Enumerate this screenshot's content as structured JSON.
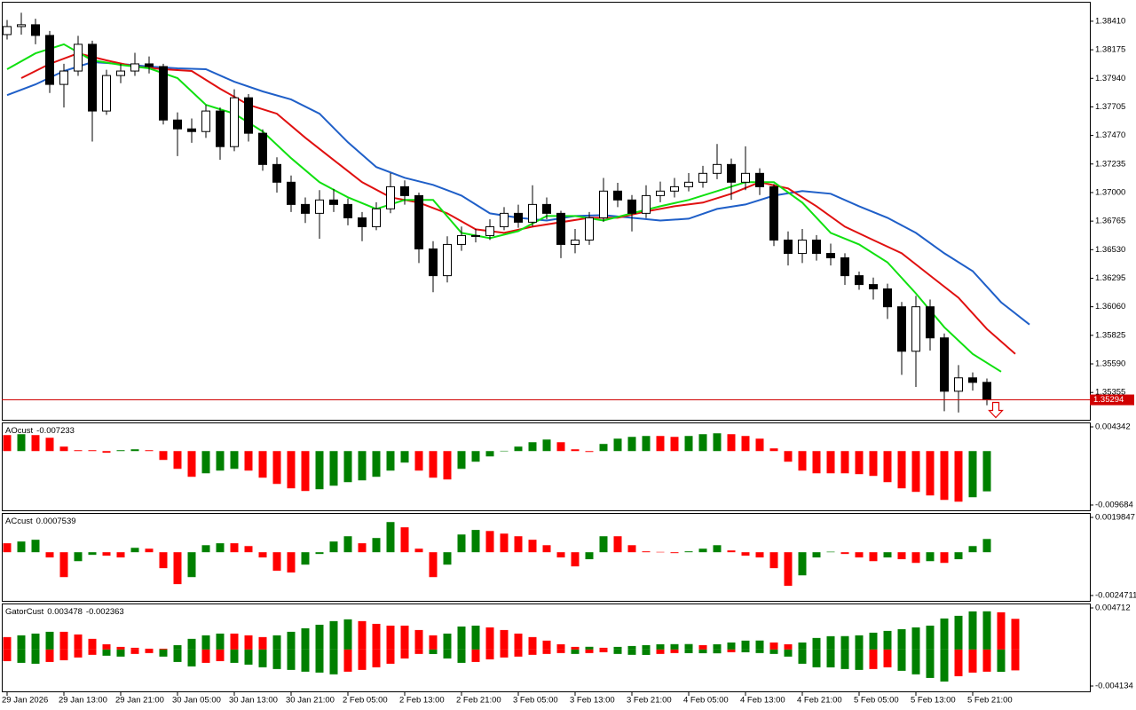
{
  "chart_data": [
    {
      "type": "candlestick",
      "xlim": [
        -0.375,
        76.25
      ],
      "ylim": [
        1.3513,
        1.3857
      ],
      "yticks": [
        {
          "value": 1.3841,
          "label": "1.38410"
        },
        1.38175,
        {
          "value": 1.3794,
          "label": "1.37940"
        },
        1.37705,
        {
          "value": 1.3747,
          "label": "1.37470"
        },
        1.37235,
        {
          "value": 1.37,
          "label": "1.37000"
        },
        1.36765,
        {
          "value": 1.3653,
          "label": "1.36530"
        },
        1.36295,
        {
          "value": 1.3606,
          "label": "1.36060"
        },
        1.35825,
        {
          "value": 1.3559,
          "label": "1.35590"
        },
        1.35355
      ],
      "xticks": [
        {
          "value": 0,
          "label": "29 Jan 2026"
        },
        {
          "value": 4,
          "label": "29 Jan 13:00"
        },
        {
          "value": 8,
          "label": "29 Jan 21:00"
        },
        {
          "value": 12,
          "label": "30 Jan 05:00"
        },
        {
          "value": 16,
          "label": "30 Jan 13:00"
        },
        {
          "value": 20,
          "label": "30 Jan 21:00"
        },
        {
          "value": 24,
          "label": "2 Feb 05:00"
        },
        {
          "value": 28,
          "label": "2 Feb 13:00"
        },
        {
          "value": 32,
          "label": "2 Feb 21:00"
        },
        {
          "value": 36,
          "label": "3 Feb 05:00"
        },
        {
          "value": 40,
          "label": "3 Feb 13:00"
        },
        {
          "value": 44,
          "label": "3 Feb 21:00"
        },
        {
          "value": 48,
          "label": "4 Feb 05:00"
        },
        {
          "value": 52,
          "label": "4 Feb 13:00"
        },
        {
          "value": 56,
          "label": "4 Feb 21:00"
        },
        {
          "value": 60,
          "label": "5 Feb 05:00"
        },
        {
          "value": 64,
          "label": "5 Feb 13:00"
        },
        {
          "value": 68,
          "label": "5 Feb 21:00"
        }
      ],
      "open": [
        1.383,
        1.38366,
        1.38381,
        1.38293,
        1.3789,
        1.38,
        1.3822,
        1.37671,
        1.37963,
        1.38,
        1.38059,
        1.38037,
        1.37597,
        1.37524,
        1.37502,
        1.37671,
        1.37378,
        1.3778,
        1.37488,
        1.37231,
        1.37085,
        1.36902,
        1.36829,
        1.36939,
        1.36902,
        1.36792,
        1.36719,
        1.36866,
        1.37048,
        1.36975,
        1.36536,
        1.36316,
        1.36573,
        1.36646,
        1.36646,
        1.36719,
        1.36829,
        1.36756,
        1.36902,
        1.36829,
        1.36573,
        1.36609,
        1.36792,
        1.37012,
        1.36939,
        1.36829,
        1.36975,
        1.37012,
        1.37048,
        1.37085,
        1.37158,
        1.37231,
        1.37085,
        1.37158,
        1.37048,
        1.36609,
        1.36499,
        1.36609,
        1.36499,
        1.36463,
        1.36316,
        1.36243,
        1.36207,
        1.3606,
        1.35694,
        1.3606,
        1.35804,
        1.35365,
        1.35475,
        1.35438,
        null,
        null,
        null
      ],
      "high": [
        1.3842,
        1.3848,
        1.3843,
        1.3833,
        1.3806,
        1.3829,
        1.3825,
        1.3801,
        1.3806,
        1.3815,
        1.3812,
        1.3806,
        1.3766,
        1.3761,
        1.3772,
        1.377,
        1.3785,
        1.3781,
        1.3752,
        1.3729,
        1.3714,
        1.3696,
        1.3702,
        1.3703,
        1.3695,
        1.3684,
        1.3692,
        1.3716,
        1.371,
        1.37,
        1.366,
        1.3664,
        1.3672,
        1.367,
        1.3678,
        1.3688,
        1.369,
        1.3706,
        1.3696,
        1.3685,
        1.367,
        1.3684,
        1.3712,
        1.3708,
        1.3698,
        1.3706,
        1.3709,
        1.3712,
        1.3716,
        1.3722,
        1.374,
        1.3728,
        1.3738,
        1.372,
        1.3707,
        1.3668,
        1.367,
        1.3665,
        1.3658,
        1.365,
        1.3635,
        1.363,
        1.3625,
        1.361,
        1.3615,
        1.3612,
        1.3584,
        1.3558,
        1.3552,
        1.3547,
        null,
        null,
        null
      ],
      "low": [
        1.3826,
        1.383,
        1.3822,
        1.3782,
        1.377,
        1.3796,
        1.3742,
        1.3764,
        1.379,
        1.3796,
        1.3798,
        1.3756,
        1.373,
        1.3741,
        1.3745,
        1.3727,
        1.3734,
        1.3742,
        1.3718,
        1.37,
        1.3684,
        1.3675,
        1.3662,
        1.3684,
        1.3673,
        1.366,
        1.3669,
        1.3683,
        1.369,
        1.3642,
        1.3618,
        1.3626,
        1.3652,
        1.3659,
        1.3661,
        1.3669,
        1.3671,
        1.3672,
        1.3678,
        1.3646,
        1.365,
        1.3657,
        1.3676,
        1.3688,
        1.3668,
        1.3679,
        1.3692,
        1.3696,
        1.3701,
        1.3704,
        1.3711,
        1.3694,
        1.3702,
        1.3698,
        1.3656,
        1.364,
        1.3642,
        1.3644,
        1.364,
        1.3624,
        1.362,
        1.3612,
        1.3596,
        1.355,
        1.354,
        1.357,
        1.352,
        1.3519,
        1.3537,
        1.3525,
        null,
        null,
        null
      ],
      "close": [
        1.38366,
        1.38381,
        1.38293,
        1.3789,
        1.38,
        1.3822,
        1.37671,
        1.37963,
        1.38,
        1.38059,
        1.38037,
        1.37597,
        1.37524,
        1.37502,
        1.37671,
        1.37378,
        1.3778,
        1.37488,
        1.37231,
        1.37085,
        1.36902,
        1.36829,
        1.36939,
        1.36902,
        1.36792,
        1.36719,
        1.36866,
        1.37048,
        1.36975,
        1.36536,
        1.36316,
        1.36573,
        1.36646,
        1.36646,
        1.36719,
        1.36829,
        1.36756,
        1.36902,
        1.36829,
        1.36573,
        1.36609,
        1.36792,
        1.37012,
        1.36939,
        1.36829,
        1.36975,
        1.37012,
        1.37048,
        1.37085,
        1.37158,
        1.37231,
        1.37085,
        1.37158,
        1.37048,
        1.36609,
        1.36499,
        1.36609,
        1.36499,
        1.36463,
        1.36316,
        1.36243,
        1.36207,
        1.3606,
        1.35694,
        1.3606,
        1.35804,
        1.35365,
        1.35475,
        1.35438,
        1.35294,
        null,
        null,
        null
      ],
      "up_color": "#ffffff",
      "down_color": "#000000",
      "price_line_color": "#d00000",
      "series": [
        {
          "color": "#1f5fc8",
          "x": [
            0,
            2,
            4,
            6,
            8,
            10,
            12,
            14,
            16,
            18,
            20,
            22,
            24,
            26,
            28,
            30,
            32,
            34,
            36,
            38,
            40,
            42,
            44,
            46,
            48,
            50,
            52,
            54,
            56,
            58,
            60,
            62,
            64,
            66,
            68,
            70,
            72
          ],
          "values": [
            1.37802,
            1.3789,
            1.38,
            1.38073,
            1.38059,
            1.38037,
            1.38022,
            1.38015,
            1.37912,
            1.37832,
            1.37766,
            1.37649,
            1.37414,
            1.3721,
            1.37122,
            1.37063,
            1.36975,
            1.36829,
            1.36792,
            1.3677,
            1.36807,
            1.36814,
            1.36792,
            1.3677,
            1.36785,
            1.36865,
            1.36902,
            1.36975,
            1.37012,
            1.3699,
            1.36887,
            1.36792,
            1.36668,
            1.365,
            1.36353,
            1.36097,
            1.35914
          ]
        },
        {
          "color": "#e01010",
          "x": [
            1,
            3,
            5,
            7,
            9,
            11,
            13,
            15,
            17,
            19,
            21,
            23,
            25,
            27,
            29,
            31,
            33,
            35,
            37,
            39,
            41,
            43,
            45,
            47,
            49,
            51,
            53,
            55,
            57,
            59,
            61,
            63,
            65,
            67,
            69,
            71
          ],
          "values": [
            1.37942,
            1.38059,
            1.38146,
            1.38088,
            1.38037,
            1.38015,
            1.38,
            1.37854,
            1.37722,
            1.37649,
            1.37451,
            1.37268,
            1.37085,
            1.36961,
            1.36917,
            1.36829,
            1.36697,
            1.36668,
            1.36719,
            1.36756,
            1.36792,
            1.36792,
            1.36844,
            1.36887,
            1.36917,
            1.3699,
            1.37085,
            1.37034,
            1.36887,
            1.36719,
            1.36609,
            1.365,
            1.36317,
            1.36134,
            1.35877,
            1.35672
          ]
        },
        {
          "color": "#10e010",
          "x": [
            0,
            2,
            4,
            6,
            8,
            10,
            12,
            14,
            16,
            18,
            20,
            22,
            24,
            26,
            28,
            30,
            32,
            34,
            36,
            38,
            40,
            42,
            44,
            46,
            48,
            50,
            52,
            54,
            56,
            58,
            60,
            62,
            64,
            66,
            68,
            70
          ],
          "values": [
            1.38015,
            1.38146,
            1.3822,
            1.38088,
            1.38051,
            1.38022,
            1.37942,
            1.37722,
            1.37649,
            1.37502,
            1.37283,
            1.37085,
            1.36961,
            1.36865,
            1.36939,
            1.36939,
            1.36668,
            1.36624,
            1.36683,
            1.36807,
            1.36807,
            1.3677,
            1.36829,
            1.36887,
            1.36939,
            1.37012,
            1.37085,
            1.37085,
            1.36917,
            1.36668,
            1.36573,
            1.36426,
            1.3617,
            1.35892,
            1.35672,
            1.35526
          ]
        }
      ]
    },
    {
      "type": "histogram",
      "title": "AOcust",
      "ylim": [
        -0.01064,
        0.00514
      ],
      "yticks": [
        0.004342,
        -0.009684
      ],
      "up_color": "#008000",
      "down_color": "#ff0000",
      "values": [
        0.00287,
        0.00303,
        0.00287,
        0.00239,
        0.0008,
        0.00016,
        0.00016,
        -0.0003,
        0.00016,
        0.00032,
        0.00016,
        -0.00159,
        -0.00319,
        -0.00462,
        -0.00399,
        -0.00351,
        -0.00319,
        -0.00351,
        -0.00478,
        -0.0059,
        -0.00669,
        -0.00717,
        -0.00685,
        -0.00622,
        -0.00558,
        -0.00526,
        -0.00462,
        -0.00351,
        -0.00207,
        -0.00351,
        -0.00478,
        -0.0051,
        -0.00319,
        -0.00191,
        -0.00096,
        5e-05,
        0.0008,
        0.00159,
        0.00207,
        0.00159,
        0.00032,
        -0.00016,
        0.00128,
        0.00223,
        0.00255,
        0.00271,
        0.00271,
        0.00255,
        0.00271,
        0.00303,
        0.00319,
        0.00303,
        0.00271,
        0.00223,
        0.00048,
        -0.00191,
        -0.00351,
        -0.00399,
        -0.00399,
        -0.00399,
        -0.00414,
        -0.00446,
        -0.00558,
        -0.00669,
        -0.00733,
        -0.00797,
        -0.00877,
        -0.00909,
        -0.00829,
        -0.007233
      ]
    },
    {
      "type": "histogram",
      "title": "ACcust",
      "ylim": [
        -0.002775,
        0.002238
      ],
      "yticks": [
        0.0019847,
        -0.0024711
      ],
      "up_color": "#008000",
      "down_color": "#ff0000",
      "values": [
        0.00051,
        0.00061,
        0.00071,
        -0.0003,
        -0.00142,
        -0.00051,
        -0.00015,
        -0.0002,
        -0.0003,
        0.00025,
        0.0002,
        -0.00091,
        -0.00182,
        -0.00142,
        0.0004,
        0.00051,
        0.00051,
        0.00035,
        -0.0003,
        -0.00106,
        -0.00116,
        -0.00071,
        -0.0001,
        0.00061,
        0.00091,
        0.00051,
        0.00081,
        0.00172,
        0.00142,
        0.0002,
        -0.00142,
        -0.00071,
        0.00101,
        0.00127,
        0.00121,
        0.00106,
        0.00091,
        0.00071,
        0.0004,
        -0.0003,
        -0.00081,
        -0.0004,
        0.00091,
        0.00091,
        0.0004,
        5e-05,
        2e-05,
        -5e-05,
        5e-05,
        0.0002,
        0.0004,
        0.0001,
        -0.0002,
        -0.0003,
        -0.00091,
        -0.00192,
        -0.00132,
        -0.0003,
        3e-05,
        -0.0001,
        -0.0003,
        -0.00051,
        -0.0003,
        -0.0004,
        -0.00061,
        -0.00051,
        -0.00061,
        -0.0004,
        0.00035,
        0.0007539
      ]
    },
    {
      "type": "gator",
      "title": "GatorCust",
      "ylim": [
        -0.004737,
        0.005215
      ],
      "yticks": [
        0.004712,
        -0.004134
      ],
      "up_color": "#008000",
      "down_color": "#ff0000",
      "series": [
        {
          "values": [
            0.00141,
            0.00161,
            0.00181,
            0.00201,
            0.00201,
            0.00171,
            0.00121,
            0.0006,
            0.0003,
            0.0002,
            0.0001,
            0.0001,
            0.0005,
            0.00121,
            0.00161,
            0.00181,
            0.00181,
            0.00161,
            0.00141,
            0.00161,
            0.00201,
            0.00241,
            0.00281,
            0.00322,
            0.00342,
            0.00322,
            0.00291,
            0.00271,
            0.00271,
            0.00221,
            0.00161,
            0.00181,
            0.00261,
            0.00271,
            0.00251,
            0.00221,
            0.00181,
            0.00141,
            0.00101,
            0.0006,
            0.0003,
            0.00031,
            0.0002,
            0.0003,
            0.0004,
            0.0005,
            0.0006,
            0.00061,
            0.00062,
            0.0005,
            0.0006,
            0.0008,
            0.00101,
            0.00102,
            0.0008,
            0.0006,
            0.0008,
            0.00131,
            0.00151,
            0.00152,
            0.00161,
            0.00191,
            0.00211,
            0.00231,
            0.00251,
            0.00271,
            0.00352,
            0.00382,
            0.00432,
            0.00433,
            0.00422,
            0.003478
          ]
        },
        {
          "values": [
            -0.00131,
            -0.00151,
            -0.00161,
            -0.00141,
            -0.00121,
            -0.0009,
            -0.0006,
            -0.0007,
            -0.0008,
            -0.0005,
            -0.0004,
            -0.0008,
            -0.00141,
            -0.00191,
            -0.00151,
            -0.00131,
            -0.00151,
            -0.00171,
            -0.00201,
            -0.00221,
            -0.00231,
            -0.00251,
            -0.00261,
            -0.00281,
            -0.00251,
            -0.00231,
            -0.00201,
            -0.00161,
            -0.00101,
            -0.0005,
            -0.00051,
            -0.00101,
            -0.00151,
            -0.00141,
            -0.00111,
            -0.0009,
            -0.0008,
            -0.0006,
            -0.0005,
            -0.0004,
            -0.0005,
            -0.0004,
            -0.0003,
            -0.0005,
            -0.0006,
            -0.00061,
            -0.0005,
            -0.0004,
            -0.00041,
            -0.00042,
            -0.00043,
            -0.0003,
            -0.00031,
            -0.0004,
            -0.0005,
            -0.0008,
            -0.00161,
            -0.00201,
            -0.00202,
            -0.00221,
            -0.00231,
            -0.00221,
            -0.00201,
            -0.00241,
            -0.00281,
            -0.00322,
            -0.00362,
            -0.00302,
            -0.00261,
            -0.00251,
            -0.00252,
            -0.002363
          ]
        }
      ]
    }
  ]
}
